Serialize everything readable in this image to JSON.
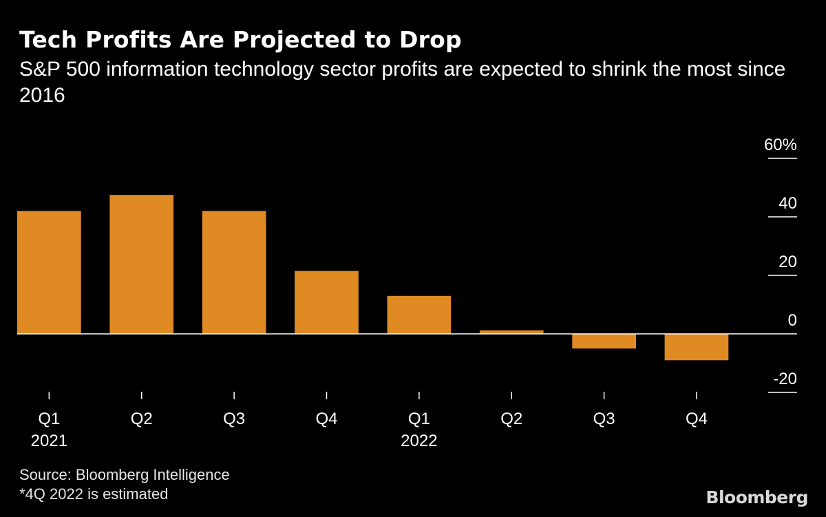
{
  "header": {
    "title": "Tech Profits Are Projected to Drop",
    "subtitle": "S&P 500 information technology sector profits are expected to shrink the most since 2016"
  },
  "colors": {
    "background": "#000000",
    "bar": "#e08a24",
    "text": "#ffffff",
    "axis": "#ffffff"
  },
  "chart_data": {
    "type": "bar",
    "title": "Tech Profits Are Projected to Drop",
    "xlabel": "",
    "ylabel": "",
    "categories": [
      "Q1",
      "Q2",
      "Q3",
      "Q4",
      "Q1",
      "Q2",
      "Q3",
      "Q4"
    ],
    "year_labels": [
      "2021",
      "",
      "",
      "",
      "2022",
      "",
      "",
      ""
    ],
    "values": [
      42,
      47.5,
      42,
      21.5,
      13,
      1.2,
      -5,
      -9
    ],
    "ylim": [
      -20,
      60
    ],
    "yticks": [
      60,
      40,
      20,
      0,
      -20
    ],
    "ytick_labels": [
      "60%",
      "40",
      "20",
      "0",
      "-20"
    ],
    "y_axis_position": "right",
    "grid": false,
    "zero_line": true
  },
  "footer": {
    "source": "Source: Bloomberg Intelligence",
    "note": "*4Q 2022 is estimated",
    "brand": "Bloomberg"
  }
}
